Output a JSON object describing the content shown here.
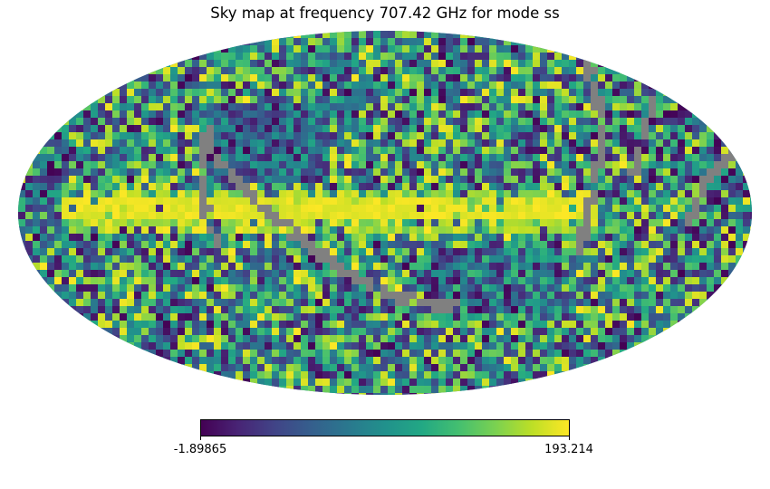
{
  "title": "Sky map at frequency 707.42 GHz for mode ss",
  "projection": "mollweide",
  "colormap": "viridis",
  "masked_color": "#808080",
  "colorbar": {
    "min_label": "-1.89865",
    "max_label": "193.214",
    "min": -1.89865,
    "max": 193.214
  }
}
